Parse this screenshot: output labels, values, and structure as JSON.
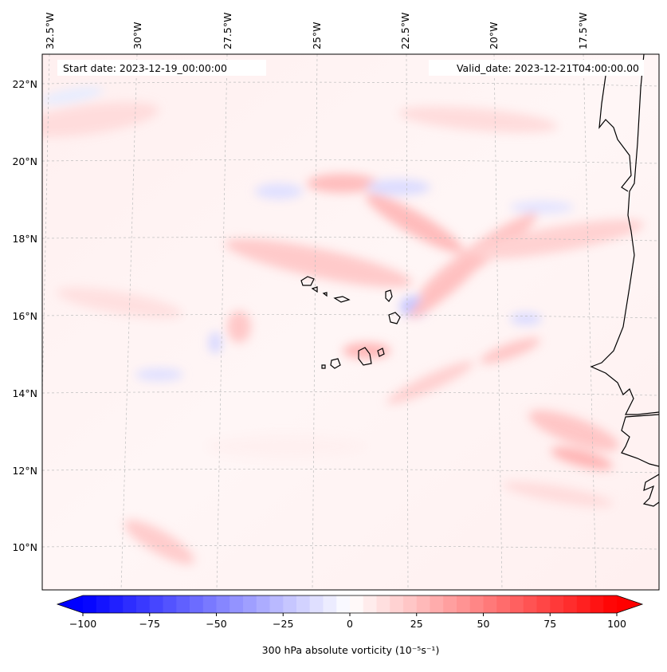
{
  "map": {
    "start_date_label": "Start date: 2023-12-19_00:00:00",
    "valid_date_label": "Valid_date: 2023-12-21T04:00:00.00",
    "longitude_labels": [
      "32.5°W",
      "30°W",
      "27.5°W",
      "25°W",
      "22.5°W",
      "20°W",
      "17.5°W"
    ],
    "latitude_labels": [
      "22°N",
      "20°N",
      "18°N",
      "16°N",
      "14°N",
      "12°N",
      "10°N"
    ],
    "gridlines": true,
    "colorbar": {
      "ticks": [
        "−100",
        "−75",
        "−50",
        "−25",
        "0",
        "25",
        "50",
        "75",
        "100"
      ],
      "label": "300 hPa absolute vorticity (10⁻⁵s⁻¹)",
      "range": [
        -100,
        100
      ],
      "low_color": "#0000ff",
      "mid_color": "#ffffff",
      "high_color": "#ff0000"
    }
  }
}
